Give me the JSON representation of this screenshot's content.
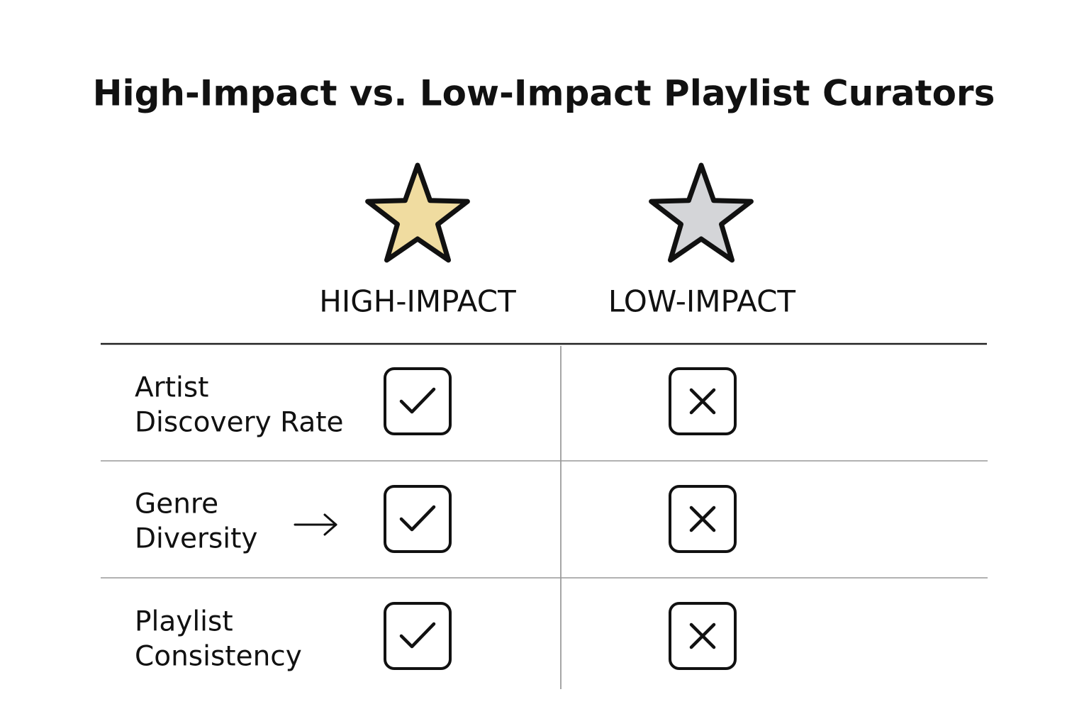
{
  "header": {
    "title": "High-Impact vs. Low-Impact Playlist Curators"
  },
  "table": {
    "columns": [
      "HIGH-IMPACT",
      "LOW-IMPACT"
    ],
    "rows": [
      {
        "label": [
          "Artist",
          "Discovery Rate"
        ]
      },
      {
        "label": [
          "Genre",
          "Diversity"
        ]
      },
      {
        "label": [
          "Playlist",
          "Consistency"
        ]
      }
    ]
  }
}
